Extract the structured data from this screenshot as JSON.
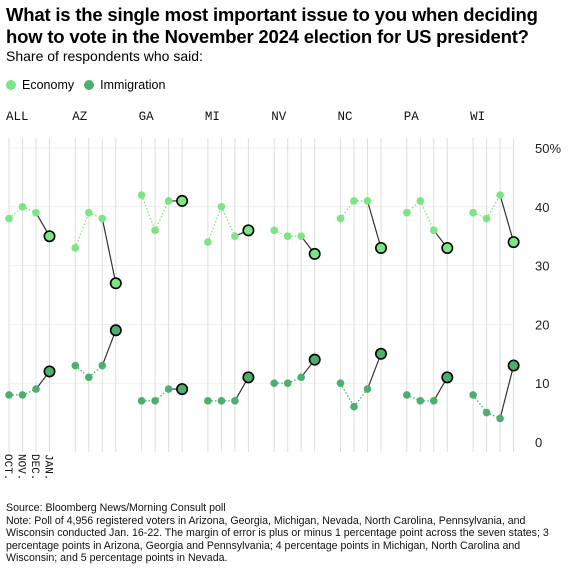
{
  "title": "What is the single most important issue to you when deciding how to vote in the November 2024 election for US president?",
  "subtitle": "Share of respondents who said:",
  "legend": [
    {
      "label": "Economy",
      "color": "#7ae582"
    },
    {
      "label": "Immigration",
      "color": "#4caf6e"
    }
  ],
  "colors": {
    "economy": "#7ae582",
    "immigration": "#4caf6e",
    "last_outline": "#000000",
    "grid": "#dddddd",
    "line": "#333333"
  },
  "chart_data": {
    "type": "line",
    "x": [
      "OCT.",
      "NOV.",
      "DEC.",
      "JAN."
    ],
    "ylim": [
      0,
      50
    ],
    "yticks": [
      0,
      10,
      20,
      30,
      40,
      50
    ],
    "ytick_labels": [
      "0",
      "10",
      "20",
      "30",
      "40",
      "50%"
    ],
    "panels": [
      {
        "name": "ALL",
        "economy": [
          38,
          40,
          39,
          35
        ],
        "immigration": [
          8,
          8,
          9,
          12
        ]
      },
      {
        "name": "AZ",
        "economy": [
          33,
          39,
          38,
          27
        ],
        "immigration": [
          13,
          11,
          13,
          19
        ]
      },
      {
        "name": "GA",
        "economy": [
          42,
          36,
          41,
          41
        ],
        "immigration": [
          7,
          7,
          9,
          9
        ]
      },
      {
        "name": "MI",
        "economy": [
          34,
          40,
          35,
          36
        ],
        "immigration": [
          7,
          7,
          7,
          11
        ]
      },
      {
        "name": "NV",
        "economy": [
          36,
          35,
          35,
          32
        ],
        "immigration": [
          10,
          10,
          11,
          14
        ]
      },
      {
        "name": "NC",
        "economy": [
          38,
          41,
          41,
          33
        ],
        "immigration": [
          10,
          6,
          9,
          15
        ]
      },
      {
        "name": "PA",
        "economy": [
          39,
          41,
          36,
          33
        ],
        "immigration": [
          8,
          7,
          7,
          11
        ]
      },
      {
        "name": "WI",
        "economy": [
          39,
          38,
          42,
          34
        ],
        "immigration": [
          8,
          5,
          4,
          13
        ]
      }
    ]
  },
  "source": "Source: Bloomberg News/Morning Consult poll",
  "note": "Note: Poll of 4,956 registered voters in Arizona, Georgia, Michigan, Nevada, North Carolina, Pennsylvania, and Wisconsin conducted Jan. 16-22. The margin of error is plus or minus 1 percentage point across the seven states; 3 percentage points in Arizona, Georgia and Pennsylvania; 4 percentage points in Michigan, North Carolina and Wisconsin; and 5 percentage points in Nevada."
}
